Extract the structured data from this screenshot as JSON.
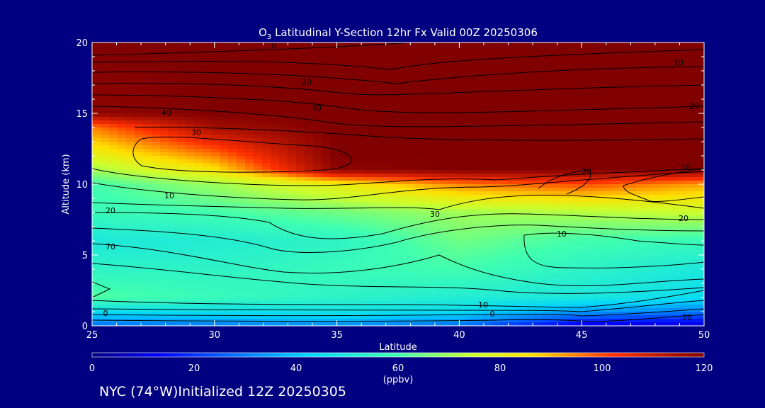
{
  "chart_data": {
    "type": "contour",
    "title_main": "O",
    "title_sub": "3",
    "title_rest": " Latitudinal Y-Section 12hr  Fx Valid 00Z 20250306",
    "xlabel": "Latitude",
    "ylabel": "Altitude (km)",
    "xlim": [
      25,
      50
    ],
    "ylim": [
      0,
      20
    ],
    "x_ticks": [
      "25",
      "30",
      "35",
      "40",
      "45",
      "50"
    ],
    "y_ticks": [
      "0",
      "5",
      "10",
      "15",
      "20"
    ],
    "colorbar": {
      "label": "(ppbv)",
      "range": [
        0,
        120
      ],
      "ticks": [
        "0",
        "20",
        "40",
        "60",
        "80",
        "100",
        "120"
      ]
    },
    "contour_labels": [
      "0",
      "10",
      "20",
      "30",
      "40",
      "30",
      "20",
      "70",
      "10",
      "10",
      "20",
      "30",
      "20",
      "10",
      "0",
      "70",
      "10",
      "20",
      "0"
    ],
    "field_ppbv": {
      "altitudes_km": [
        0,
        1,
        2,
        4,
        6,
        8,
        10,
        11,
        12,
        14,
        15,
        20
      ],
      "latitudes": [
        25,
        30,
        35,
        40,
        45,
        50
      ],
      "values": [
        [
          28,
          30,
          32,
          28,
          10,
          8
        ],
        [
          45,
          46,
          48,
          45,
          35,
          30
        ],
        [
          62,
          58,
          55,
          52,
          50,
          45
        ],
        [
          55,
          55,
          58,
          60,
          55,
          50
        ],
        [
          50,
          52,
          55,
          65,
          60,
          58
        ],
        [
          58,
          60,
          65,
          70,
          72,
          75
        ],
        [
          60,
          70,
          82,
          95,
          100,
          92
        ],
        [
          70,
          85,
          118,
          120,
          120,
          120
        ],
        [
          80,
          95,
          120,
          120,
          120,
          120
        ],
        [
          95,
          115,
          120,
          120,
          120,
          120
        ],
        [
          118,
          120,
          120,
          120,
          120,
          120
        ],
        [
          120,
          120,
          120,
          120,
          120,
          120
        ]
      ]
    }
  },
  "footer": "NYC (74°W)Initialized 12Z 20250305"
}
